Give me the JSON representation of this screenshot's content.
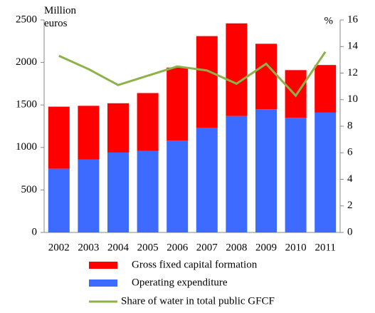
{
  "chart_data": {
    "type": "bar",
    "stacked": true,
    "y_label": "Million euros",
    "y2_label": "%",
    "categories": [
      "2002",
      "2003",
      "2004",
      "2005",
      "2006",
      "2007",
      "2008",
      "2009",
      "2010",
      "2011"
    ],
    "series": [
      {
        "name": "Gross fixed capital formation",
        "color": "#ff0000",
        "values": [
          730,
          630,
          580,
          680,
          860,
          1080,
          1090,
          770,
          560,
          560
        ]
      },
      {
        "name": "Operating expenditure",
        "color": "#3d6bff",
        "values": [
          750,
          860,
          940,
          960,
          1080,
          1230,
          1370,
          1450,
          1350,
          1410
        ]
      },
      {
        "name": "Share of water in total public GFCF",
        "color": "#8db24a",
        "type": "line",
        "axis": "y2",
        "values": [
          13.3,
          12.3,
          11.1,
          11.8,
          12.5,
          12.2,
          11.2,
          12.7,
          10.3,
          13.6
        ]
      }
    ],
    "ylim": [
      0,
      2500
    ],
    "yticks": [
      0,
      500,
      1000,
      1500,
      2000,
      2500
    ],
    "y2lim": [
      0,
      16
    ],
    "y2ticks": [
      0,
      2,
      4,
      6,
      8,
      10,
      12,
      14,
      16
    ],
    "grid": false,
    "legend": "bottom"
  }
}
